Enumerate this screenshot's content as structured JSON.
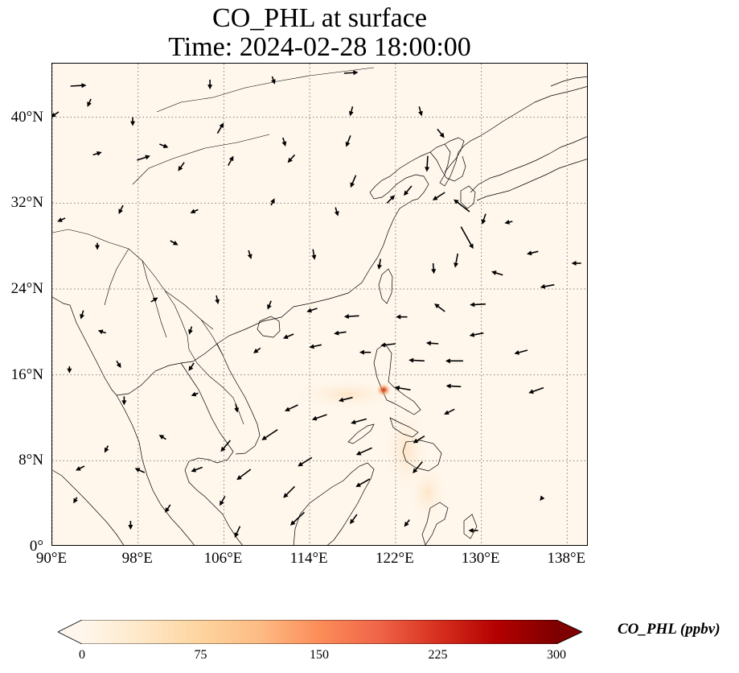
{
  "title": {
    "line1": "CO_PHL at surface",
    "line2": "Time: 2024-02-28 18:00:00"
  },
  "map": {
    "extent": {
      "lon": [
        90,
        140
      ],
      "lat": [
        0,
        45
      ]
    },
    "lat_ticks": [
      {
        "value": 0,
        "label": "0°"
      },
      {
        "value": 8,
        "label": "8°N"
      },
      {
        "value": 16,
        "label": "16°N"
      },
      {
        "value": 24,
        "label": "24°N"
      },
      {
        "value": 32,
        "label": "32°N"
      },
      {
        "value": 40,
        "label": "40°N"
      }
    ],
    "lon_ticks": [
      {
        "value": 90,
        "label": "90°E"
      },
      {
        "value": 98,
        "label": "98°E"
      },
      {
        "value": 106,
        "label": "106°E"
      },
      {
        "value": 114,
        "label": "114°E"
      },
      {
        "value": 122,
        "label": "122°E"
      },
      {
        "value": 130,
        "label": "130°E"
      },
      {
        "value": 138,
        "label": "138°E"
      }
    ],
    "gridlines": true,
    "background_color": "#fff7ec",
    "hotspot": {
      "lon": 120.9,
      "lat": 14.6,
      "color": "#c3301c"
    },
    "wind_vectors": [
      {
        "lon": 91.7,
        "lat": 42.9,
        "u": 1.8,
        "v": 0.1
      },
      {
        "lon": 93.6,
        "lat": 41.7,
        "u": -0.4,
        "v": -0.9
      },
      {
        "lon": 90.6,
        "lat": 40.5,
        "u": -0.9,
        "v": -0.6
      },
      {
        "lon": 97.5,
        "lat": 40.0,
        "u": 0,
        "v": -1
      },
      {
        "lon": 104.7,
        "lat": 43.5,
        "u": 0,
        "v": -1.1
      },
      {
        "lon": 110.5,
        "lat": 43.8,
        "u": 0.3,
        "v": -0.9
      },
      {
        "lon": 117.2,
        "lat": 44.1,
        "u": 1.6,
        "v": 0.1
      },
      {
        "lon": 118.0,
        "lat": 41.0,
        "u": -0.3,
        "v": -1.1
      },
      {
        "lon": 124.2,
        "lat": 41.0,
        "u": 0.3,
        "v": -1.1
      },
      {
        "lon": 125.9,
        "lat": 38.9,
        "u": 0.8,
        "v": -1.0
      },
      {
        "lon": 117.8,
        "lat": 38.3,
        "u": -0.5,
        "v": -1.3
      },
      {
        "lon": 111.5,
        "lat": 38.1,
        "u": 0.3,
        "v": -1.0
      },
      {
        "lon": 105.4,
        "lat": 38.5,
        "u": 0.7,
        "v": 1.2
      },
      {
        "lon": 100.0,
        "lat": 37.5,
        "u": 1.0,
        "v": -0.4
      },
      {
        "lon": 93.8,
        "lat": 36.5,
        "u": 1.0,
        "v": 0.3
      },
      {
        "lon": 97.9,
        "lat": 36.0,
        "u": 1.5,
        "v": 0.5
      },
      {
        "lon": 102.3,
        "lat": 35.8,
        "u": -0.7,
        "v": -1.0
      },
      {
        "lon": 106.4,
        "lat": 35.5,
        "u": 0.6,
        "v": 1.1
      },
      {
        "lon": 112.6,
        "lat": 36.5,
        "u": -0.8,
        "v": -0.9
      },
      {
        "lon": 118.3,
        "lat": 34.6,
        "u": -0.6,
        "v": -1.4
      },
      {
        "lon": 125.0,
        "lat": 36.4,
        "u": -0.1,
        "v": -1.8
      },
      {
        "lon": 123.5,
        "lat": 33.6,
        "u": -0.9,
        "v": -1.1
      },
      {
        "lon": 126.6,
        "lat": 33.0,
        "u": -1.4,
        "v": -0.9
      },
      {
        "lon": 128.9,
        "lat": 31.2,
        "u": -1.8,
        "v": 1.4
      },
      {
        "lon": 128.1,
        "lat": 29.8,
        "u": 1.4,
        "v": -2.5
      },
      {
        "lon": 127.8,
        "lat": 27.3,
        "u": -0.3,
        "v": -1.6
      },
      {
        "lon": 130.4,
        "lat": 31.0,
        "u": -0.4,
        "v": -1.2
      },
      {
        "lon": 132.9,
        "lat": 30.3,
        "u": -0.9,
        "v": -0.2
      },
      {
        "lon": 135.3,
        "lat": 27.5,
        "u": -1.3,
        "v": -0.3
      },
      {
        "lon": 139.3,
        "lat": 26.4,
        "u": -1.1,
        "v": 0
      },
      {
        "lon": 121.2,
        "lat": 32.0,
        "u": 0.9,
        "v": 0.9
      },
      {
        "lon": 116.4,
        "lat": 31.6,
        "u": 0.3,
        "v": -1.0
      },
      {
        "lon": 110.4,
        "lat": 31.8,
        "u": 0.4,
        "v": 0.8
      },
      {
        "lon": 103.6,
        "lat": 31.4,
        "u": -0.9,
        "v": -0.4
      },
      {
        "lon": 96.6,
        "lat": 31.8,
        "u": -0.5,
        "v": -1.0
      },
      {
        "lon": 91.2,
        "lat": 30.6,
        "u": -0.9,
        "v": -0.4
      },
      {
        "lon": 94.2,
        "lat": 28.3,
        "u": 0,
        "v": -0.8
      },
      {
        "lon": 101.0,
        "lat": 28.5,
        "u": 0.9,
        "v": -0.5
      },
      {
        "lon": 108.3,
        "lat": 27.6,
        "u": 0.3,
        "v": -1.0
      },
      {
        "lon": 114.3,
        "lat": 27.7,
        "u": 0.2,
        "v": -1.2
      },
      {
        "lon": 120.6,
        "lat": 26.8,
        "u": -0.2,
        "v": -1.2
      },
      {
        "lon": 125.5,
        "lat": 26.4,
        "u": 0.1,
        "v": -1.2
      },
      {
        "lon": 132.0,
        "lat": 25.3,
        "u": -1.3,
        "v": 0.4
      },
      {
        "lon": 136.8,
        "lat": 24.4,
        "u": -1.6,
        "v": -0.3
      },
      {
        "lon": 130.4,
        "lat": 22.6,
        "u": -1.8,
        "v": -0.1
      },
      {
        "lon": 126.6,
        "lat": 21.9,
        "u": -1.2,
        "v": 0.9
      },
      {
        "lon": 123.1,
        "lat": 21.4,
        "u": -1.3,
        "v": 0
      },
      {
        "lon": 118.6,
        "lat": 21.5,
        "u": -1.7,
        "v": -0.1
      },
      {
        "lon": 114.7,
        "lat": 22.2,
        "u": -1.2,
        "v": -0.4
      },
      {
        "lon": 110.4,
        "lat": 22.9,
        "u": -0.4,
        "v": -1.0
      },
      {
        "lon": 105.3,
        "lat": 23.4,
        "u": 0.2,
        "v": -1.0
      },
      {
        "lon": 99.2,
        "lat": 22.8,
        "u": 0.8,
        "v": 0.5
      },
      {
        "lon": 92.9,
        "lat": 22.0,
        "u": -0.3,
        "v": -1.0
      },
      {
        "lon": 95.0,
        "lat": 19.9,
        "u": -0.9,
        "v": 0.3
      },
      {
        "lon": 103.0,
        "lat": 20.5,
        "u": -0.3,
        "v": -0.9
      },
      {
        "lon": 112.5,
        "lat": 19.8,
        "u": -1.2,
        "v": -0.5
      },
      {
        "lon": 117.4,
        "lat": 20.0,
        "u": -1.4,
        "v": -0.2
      },
      {
        "lon": 122.0,
        "lat": 18.9,
        "u": -1.7,
        "v": -0.2
      },
      {
        "lon": 126.0,
        "lat": 18.9,
        "u": -1.4,
        "v": 0.1
      },
      {
        "lon": 130.2,
        "lat": 19.9,
        "u": -1.6,
        "v": -0.3
      },
      {
        "lon": 134.3,
        "lat": 18.3,
        "u": -1.5,
        "v": -0.4
      },
      {
        "lon": 128.3,
        "lat": 17.3,
        "u": -2.0,
        "v": 0
      },
      {
        "lon": 124.7,
        "lat": 17.3,
        "u": -1.8,
        "v": 0.1
      },
      {
        "lon": 119.7,
        "lat": 18.1,
        "u": -1.3,
        "v": 0
      },
      {
        "lon": 115.1,
        "lat": 18.8,
        "u": -1.4,
        "v": -0.3
      },
      {
        "lon": 109.4,
        "lat": 18.5,
        "u": -0.8,
        "v": -0.6
      },
      {
        "lon": 103.2,
        "lat": 17.1,
        "u": -0.6,
        "v": -0.9
      },
      {
        "lon": 96.0,
        "lat": 17.3,
        "u": 0.5,
        "v": -0.8
      },
      {
        "lon": 91.6,
        "lat": 16.8,
        "u": 0,
        "v": -0.8
      },
      {
        "lon": 96.7,
        "lat": 14.0,
        "u": 0,
        "v": -1.0
      },
      {
        "lon": 103.6,
        "lat": 14.3,
        "u": -0.8,
        "v": -0.3
      },
      {
        "lon": 107.1,
        "lat": 13.3,
        "u": 0.2,
        "v": -1.0
      },
      {
        "lon": 112.9,
        "lat": 13.2,
        "u": -1.5,
        "v": -0.7
      },
      {
        "lon": 118.0,
        "lat": 13.9,
        "u": -1.6,
        "v": -0.4
      },
      {
        "lon": 123.4,
        "lat": 14.6,
        "u": -1.8,
        "v": 0.3
      },
      {
        "lon": 128.1,
        "lat": 14.9,
        "u": -1.7,
        "v": 0.1
      },
      {
        "lon": 127.5,
        "lat": 12.8,
        "u": -1.2,
        "v": -0.6
      },
      {
        "lon": 135.8,
        "lat": 14.8,
        "u": -1.7,
        "v": -0.6
      },
      {
        "lon": 124.7,
        "lat": 10.3,
        "u": -1.3,
        "v": -0.8
      },
      {
        "lon": 119.3,
        "lat": 11.9,
        "u": -1.8,
        "v": -0.5
      },
      {
        "lon": 115.6,
        "lat": 12.3,
        "u": -1.7,
        "v": -0.6
      },
      {
        "lon": 111.0,
        "lat": 10.9,
        "u": -1.8,
        "v": -1.2
      },
      {
        "lon": 106.6,
        "lat": 9.9,
        "u": -1.1,
        "v": -1.3
      },
      {
        "lon": 100.6,
        "lat": 10.0,
        "u": -0.8,
        "v": 0.5
      },
      {
        "lon": 95.2,
        "lat": 9.4,
        "u": -0.4,
        "v": -0.8
      },
      {
        "lon": 93.0,
        "lat": 7.5,
        "u": -1.0,
        "v": -0.5
      },
      {
        "lon": 98.6,
        "lat": 6.9,
        "u": -1.1,
        "v": 0.5
      },
      {
        "lon": 104.0,
        "lat": 7.4,
        "u": -1.3,
        "v": -0.5
      },
      {
        "lon": 108.5,
        "lat": 7.2,
        "u": -1.6,
        "v": -1.2
      },
      {
        "lon": 114.2,
        "lat": 8.3,
        "u": -1.6,
        "v": -1.0
      },
      {
        "lon": 119.8,
        "lat": 9.2,
        "u": -1.8,
        "v": -0.8
      },
      {
        "lon": 124.5,
        "lat": 7.9,
        "u": -1.1,
        "v": -1.3
      },
      {
        "lon": 119.6,
        "lat": 6.3,
        "u": -1.6,
        "v": -0.9
      },
      {
        "lon": 112.6,
        "lat": 5.6,
        "u": -1.3,
        "v": -1.3
      },
      {
        "lon": 106.1,
        "lat": 4.7,
        "u": -0.6,
        "v": -1.1
      },
      {
        "lon": 101.0,
        "lat": 3.9,
        "u": -0.6,
        "v": -0.9
      },
      {
        "lon": 92.3,
        "lat": 4.6,
        "u": -0.4,
        "v": -0.7
      },
      {
        "lon": 97.3,
        "lat": 2.4,
        "u": 0,
        "v": -1.0
      },
      {
        "lon": 107.5,
        "lat": 1.9,
        "u": -0.6,
        "v": -1.3
      },
      {
        "lon": 113.5,
        "lat": 3.2,
        "u": -1.6,
        "v": -1.5
      },
      {
        "lon": 118.4,
        "lat": 3.0,
        "u": -0.8,
        "v": -1.1
      },
      {
        "lon": 123.3,
        "lat": 2.5,
        "u": -0.6,
        "v": -0.8
      },
      {
        "lon": 129.7,
        "lat": 1.5,
        "u": -1.1,
        "v": 0
      },
      {
        "lon": 135.7,
        "lat": 4.6,
        "u": -0.3,
        "v": -0.4
      },
      {
        "lon": 139.0,
        "lat": 9.2,
        "u": 0,
        "v": 0
      }
    ]
  },
  "colorbar": {
    "label": "CO_PHL (ppbv)",
    "min": 0,
    "max": 300,
    "extend": "both",
    "cmap": "OrRd",
    "ticks": [
      {
        "value": 0,
        "label": "0"
      },
      {
        "value": 75,
        "label": "75"
      },
      {
        "value": 150,
        "label": "150"
      },
      {
        "value": 225,
        "label": "225"
      },
      {
        "value": 300,
        "label": "300"
      }
    ],
    "colors": [
      "#fff7ec",
      "#fee8c8",
      "#fdd49e",
      "#fdbb84",
      "#fc8d59",
      "#ef6548",
      "#d7301f",
      "#b30000",
      "#7f0000"
    ]
  }
}
